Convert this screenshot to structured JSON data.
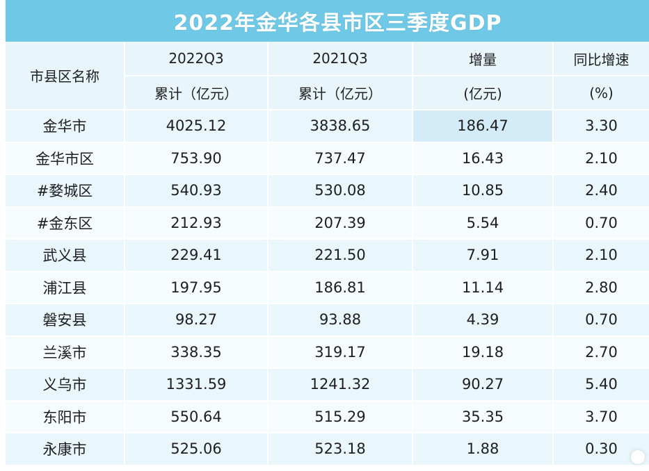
{
  "title": "2022年金华各县市区三季度GDP",
  "header": {
    "col0": "市县区名称",
    "col1_top": "2022Q3",
    "col1_bottom": "累计（亿元）",
    "col2_top": "2021Q3",
    "col2_bottom": "累计（亿元）",
    "col3_top": "增量",
    "col3_bottom": "(亿元)",
    "col4_top": "同比增速",
    "col4_bottom": "(%)"
  },
  "rows": [
    {
      "name": "金华市",
      "q3_2022": "4025.12",
      "q3_2021": "3838.65",
      "increase": "186.47",
      "growth": "3.30"
    },
    {
      "name": "金华市区",
      "q3_2022": "753.90",
      "q3_2021": "737.47",
      "increase": "16.43",
      "growth": "2.10"
    },
    {
      "name": "#婺城区",
      "q3_2022": "540.93",
      "q3_2021": "530.08",
      "increase": "10.85",
      "growth": "2.40"
    },
    {
      "name": "#金东区",
      "q3_2022": "212.93",
      "q3_2021": "207.39",
      "increase": "5.54",
      "growth": "0.70"
    },
    {
      "name": "武义县",
      "q3_2022": "229.41",
      "q3_2021": "221.50",
      "increase": "7.91",
      "growth": "2.10"
    },
    {
      "name": "浦江县",
      "q3_2022": "197.95",
      "q3_2021": "186.81",
      "increase": "11.14",
      "growth": "2.80"
    },
    {
      "name": "磐安县",
      "q3_2022": "98.27",
      "q3_2021": "93.88",
      "increase": "4.39",
      "growth": "0.70"
    },
    {
      "name": "兰溪市",
      "q3_2022": "338.35",
      "q3_2021": "319.17",
      "increase": "19.18",
      "growth": "2.70"
    },
    {
      "name": "义乌市",
      "q3_2022": "1331.59",
      "q3_2021": "1241.32",
      "increase": "90.27",
      "growth": "5.40"
    },
    {
      "name": "东阳市",
      "q3_2022": "550.64",
      "q3_2021": "515.29",
      "increase": "35.35",
      "growth": "3.70"
    },
    {
      "name": "永康市",
      "q3_2022": "525.06",
      "q3_2021": "523.18",
      "increase": "1.88",
      "growth": "0.30"
    }
  ],
  "colors": {
    "title_bg": "#6fc8e6",
    "header_bg": "#e8f5fb",
    "row_a": "#e9f6fc",
    "row_b": "#f6fbfe"
  }
}
